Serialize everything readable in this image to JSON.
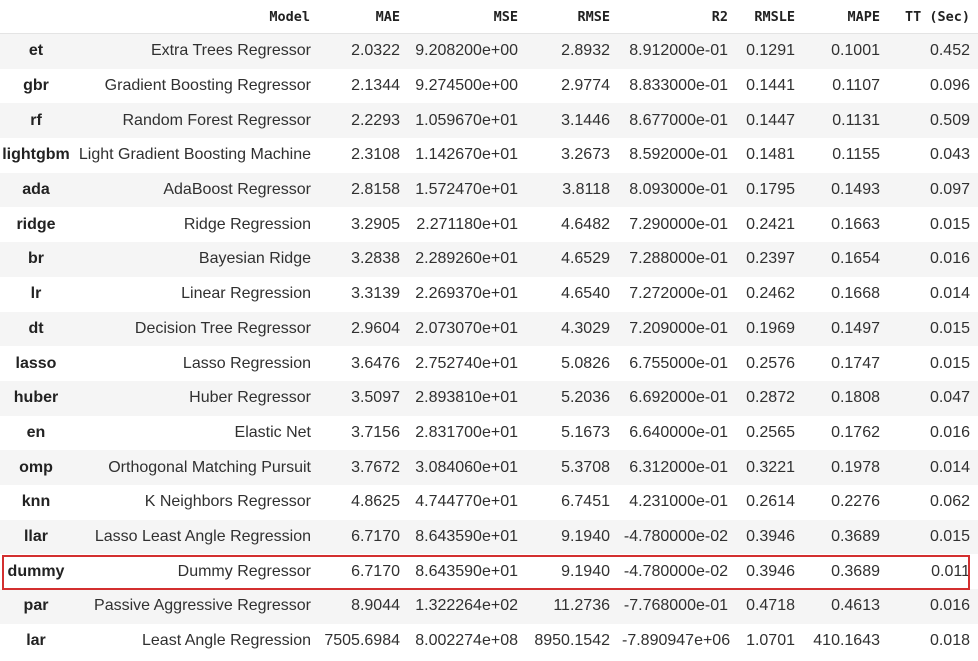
{
  "table": {
    "columns": [
      "",
      "Model",
      "MAE",
      "MSE",
      "RMSE",
      "R2",
      "RMSLE",
      "MAPE",
      "TT (Sec)"
    ],
    "rows": [
      [
        "et",
        "Extra Trees Regressor",
        "2.0322",
        "9.208200e+00",
        "2.8932",
        "8.912000e-01",
        "0.1291",
        "0.1001",
        "0.452"
      ],
      [
        "gbr",
        "Gradient Boosting Regressor",
        "2.1344",
        "9.274500e+00",
        "2.9774",
        "8.833000e-01",
        "0.1441",
        "0.1107",
        "0.096"
      ],
      [
        "rf",
        "Random Forest Regressor",
        "2.2293",
        "1.059670e+01",
        "3.1446",
        "8.677000e-01",
        "0.1447",
        "0.1131",
        "0.509"
      ],
      [
        "lightgbm",
        "Light Gradient Boosting Machine",
        "2.3108",
        "1.142670e+01",
        "3.2673",
        "8.592000e-01",
        "0.1481",
        "0.1155",
        "0.043"
      ],
      [
        "ada",
        "AdaBoost Regressor",
        "2.8158",
        "1.572470e+01",
        "3.8118",
        "8.093000e-01",
        "0.1795",
        "0.1493",
        "0.097"
      ],
      [
        "ridge",
        "Ridge Regression",
        "3.2905",
        "2.271180e+01",
        "4.6482",
        "7.290000e-01",
        "0.2421",
        "0.1663",
        "0.015"
      ],
      [
        "br",
        "Bayesian Ridge",
        "3.2838",
        "2.289260e+01",
        "4.6529",
        "7.288000e-01",
        "0.2397",
        "0.1654",
        "0.016"
      ],
      [
        "lr",
        "Linear Regression",
        "3.3139",
        "2.269370e+01",
        "4.6540",
        "7.272000e-01",
        "0.2462",
        "0.1668",
        "0.014"
      ],
      [
        "dt",
        "Decision Tree Regressor",
        "2.9604",
        "2.073070e+01",
        "4.3029",
        "7.209000e-01",
        "0.1969",
        "0.1497",
        "0.015"
      ],
      [
        "lasso",
        "Lasso Regression",
        "3.6476",
        "2.752740e+01",
        "5.0826",
        "6.755000e-01",
        "0.2576",
        "0.1747",
        "0.015"
      ],
      [
        "huber",
        "Huber Regressor",
        "3.5097",
        "2.893810e+01",
        "5.2036",
        "6.692000e-01",
        "0.2872",
        "0.1808",
        "0.047"
      ],
      [
        "en",
        "Elastic Net",
        "3.7156",
        "2.831700e+01",
        "5.1673",
        "6.640000e-01",
        "0.2565",
        "0.1762",
        "0.016"
      ],
      [
        "omp",
        "Orthogonal Matching Pursuit",
        "3.7672",
        "3.084060e+01",
        "5.3708",
        "6.312000e-01",
        "0.3221",
        "0.1978",
        "0.014"
      ],
      [
        "knn",
        "K Neighbors Regressor",
        "4.8625",
        "4.744770e+01",
        "6.7451",
        "4.231000e-01",
        "0.2614",
        "0.2276",
        "0.062"
      ],
      [
        "llar",
        "Lasso Least Angle Regression",
        "6.7170",
        "8.643590e+01",
        "9.1940",
        "-4.780000e-02",
        "0.3946",
        "0.3689",
        "0.015"
      ],
      [
        "dummy",
        "Dummy Regressor",
        "6.7170",
        "8.643590e+01",
        "9.1940",
        "-4.780000e-02",
        "0.3946",
        "0.3689",
        "0.011"
      ],
      [
        "par",
        "Passive Aggressive Regressor",
        "8.9044",
        "1.322264e+02",
        "11.2736",
        "-7.768000e-01",
        "0.4718",
        "0.4613",
        "0.016"
      ],
      [
        "lar",
        "Least Angle Regression",
        "7505.6984",
        "8.002274e+08",
        "8950.1542",
        "-7.890947e+06",
        "1.0701",
        "410.1643",
        "0.018"
      ]
    ]
  },
  "highlight": {
    "row_id": "dummy",
    "color": "#d32f2f"
  },
  "colors": {
    "stripe": "#f5f5f5",
    "text": "#303030"
  }
}
